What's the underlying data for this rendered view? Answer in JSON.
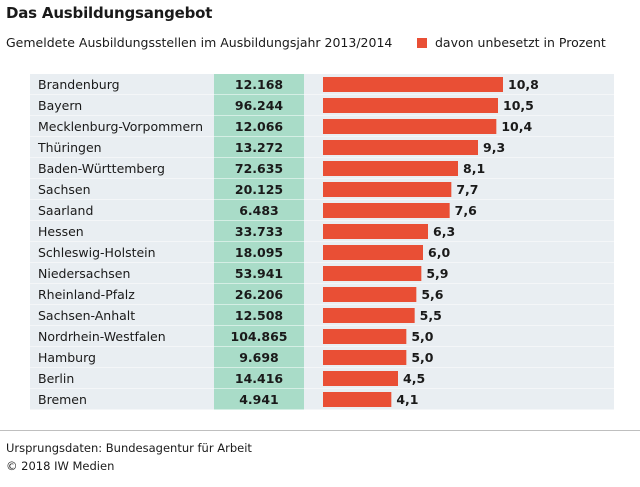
{
  "title": "Das Ausbildungsangebot",
  "subtitle": "Gemeldete Ausbildungsstellen im Ausbildungsjahr 2013/2014",
  "legend": {
    "label": "davon unbesetzt in Prozent",
    "color": "#e94f35"
  },
  "footer": {
    "source": "Ursprungsdaten: Bundesagentur für Arbeit",
    "copyright": "© 2018 IW Medien"
  },
  "colors": {
    "stripe": "#e9eef2",
    "column_fill": "#a9dcc8",
    "bar": "#e94f35",
    "text": "#1a1a1a"
  },
  "chart_data": {
    "type": "bar",
    "orientation": "horizontal",
    "categories": [
      "Brandenburg",
      "Bayern",
      "Mecklenburg-Vorpommern",
      "Thüringen",
      "Baden-Württemberg",
      "Sachsen",
      "Saarland",
      "Hessen",
      "Schleswig-Holstein",
      "Niedersachsen",
      "Rheinland-Pfalz",
      "Sachsen-Anhalt",
      "Nordrhein-Westfalen",
      "Hamburg",
      "Berlin",
      "Bremen"
    ],
    "stellen_labels": [
      "12.168",
      "96.244",
      "12.066",
      "13.272",
      "72.635",
      "20.125",
      "6.483",
      "33.733",
      "18.095",
      "53.941",
      "26.206",
      "12.508",
      "104.865",
      "9.698",
      "14.416",
      "4.941"
    ],
    "series": [
      {
        "name": "davon unbesetzt in Prozent",
        "values": [
          10.8,
          10.5,
          10.4,
          9.3,
          8.1,
          7.7,
          7.6,
          6.3,
          6.0,
          5.9,
          5.6,
          5.5,
          5.0,
          5.0,
          4.5,
          4.1
        ],
        "labels": [
          "10,8",
          "10,5",
          "10,4",
          "9,3",
          "8,1",
          "7,7",
          "7,6",
          "6,3",
          "6,0",
          "5,9",
          "5,6",
          "5,5",
          "5,0",
          "5,0",
          "4,5",
          "4,1"
        ]
      }
    ],
    "xlim": [
      0,
      10.8
    ],
    "grid": false,
    "legend_position": "top-right"
  }
}
